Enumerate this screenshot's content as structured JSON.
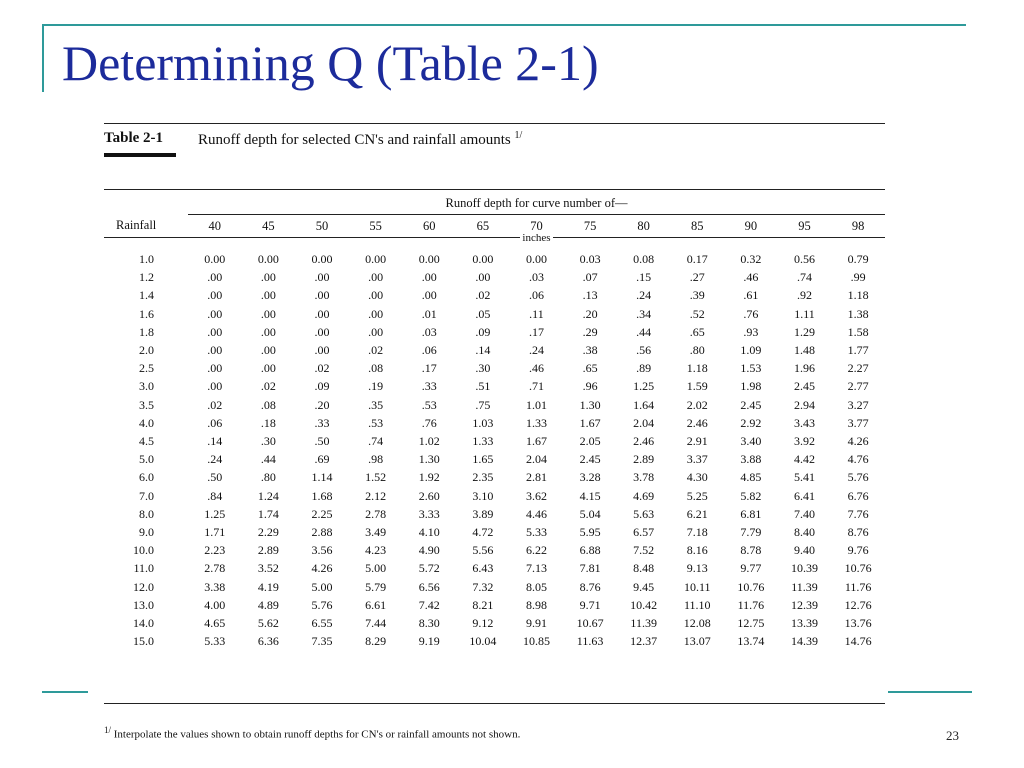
{
  "slide": {
    "title": "Determining Q (Table 2-1)",
    "page_number": "23",
    "accent_color": "#2e9a9a",
    "title_color": "#1c2b9b"
  },
  "table": {
    "label": "Table 2-1",
    "caption": "Runoff depth for selected CN's and rainfall amounts",
    "caption_note_mark": "1/",
    "group_header": "Runoff depth for curve number of—",
    "rain_header": "Rainfall",
    "units": "inches",
    "cn_columns": [
      "40",
      "45",
      "50",
      "55",
      "60",
      "65",
      "70",
      "75",
      "80",
      "85",
      "90",
      "95",
      "98"
    ],
    "rows": [
      {
        "rainfall": "1.0",
        "values": [
          "0.00",
          "0.00",
          "0.00",
          "0.00",
          "0.00",
          "0.00",
          "0.00",
          "0.03",
          "0.08",
          "0.17",
          "0.32",
          "0.56",
          "0.79"
        ]
      },
      {
        "rainfall": "1.2",
        "values": [
          ".00",
          ".00",
          ".00",
          ".00",
          ".00",
          ".00",
          ".03",
          ".07",
          ".15",
          ".27",
          ".46",
          ".74",
          ".99"
        ]
      },
      {
        "rainfall": "1.4",
        "values": [
          ".00",
          ".00",
          ".00",
          ".00",
          ".00",
          ".02",
          ".06",
          ".13",
          ".24",
          ".39",
          ".61",
          ".92",
          "1.18"
        ]
      },
      {
        "rainfall": "1.6",
        "values": [
          ".00",
          ".00",
          ".00",
          ".00",
          ".01",
          ".05",
          ".11",
          ".20",
          ".34",
          ".52",
          ".76",
          "1.11",
          "1.38"
        ]
      },
      {
        "rainfall": "1.8",
        "values": [
          ".00",
          ".00",
          ".00",
          ".00",
          ".03",
          ".09",
          ".17",
          ".29",
          ".44",
          ".65",
          ".93",
          "1.29",
          "1.58"
        ]
      },
      {
        "rainfall": "2.0",
        "values": [
          ".00",
          ".00",
          ".00",
          ".02",
          ".06",
          ".14",
          ".24",
          ".38",
          ".56",
          ".80",
          "1.09",
          "1.48",
          "1.77"
        ]
      },
      {
        "rainfall": "2.5",
        "values": [
          ".00",
          ".00",
          ".02",
          ".08",
          ".17",
          ".30",
          ".46",
          ".65",
          ".89",
          "1.18",
          "1.53",
          "1.96",
          "2.27"
        ]
      },
      {
        "rainfall": "3.0",
        "values": [
          ".00",
          ".02",
          ".09",
          ".19",
          ".33",
          ".51",
          ".71",
          ".96",
          "1.25",
          "1.59",
          "1.98",
          "2.45",
          "2.77"
        ]
      },
      {
        "rainfall": "3.5",
        "values": [
          ".02",
          ".08",
          ".20",
          ".35",
          ".53",
          ".75",
          "1.01",
          "1.30",
          "1.64",
          "2.02",
          "2.45",
          "2.94",
          "3.27"
        ]
      },
      {
        "rainfall": "4.0",
        "values": [
          ".06",
          ".18",
          ".33",
          ".53",
          ".76",
          "1.03",
          "1.33",
          "1.67",
          "2.04",
          "2.46",
          "2.92",
          "3.43",
          "3.77"
        ]
      },
      {
        "rainfall": "4.5",
        "values": [
          ".14",
          ".30",
          ".50",
          ".74",
          "1.02",
          "1.33",
          "1.67",
          "2.05",
          "2.46",
          "2.91",
          "3.40",
          "3.92",
          "4.26"
        ]
      },
      {
        "rainfall": "5.0",
        "values": [
          ".24",
          ".44",
          ".69",
          ".98",
          "1.30",
          "1.65",
          "2.04",
          "2.45",
          "2.89",
          "3.37",
          "3.88",
          "4.42",
          "4.76"
        ]
      },
      {
        "rainfall": "6.0",
        "values": [
          ".50",
          ".80",
          "1.14",
          "1.52",
          "1.92",
          "2.35",
          "2.81",
          "3.28",
          "3.78",
          "4.30",
          "4.85",
          "5.41",
          "5.76"
        ]
      },
      {
        "rainfall": "7.0",
        "values": [
          ".84",
          "1.24",
          "1.68",
          "2.12",
          "2.60",
          "3.10",
          "3.62",
          "4.15",
          "4.69",
          "5.25",
          "5.82",
          "6.41",
          "6.76"
        ]
      },
      {
        "rainfall": "8.0",
        "values": [
          "1.25",
          "1.74",
          "2.25",
          "2.78",
          "3.33",
          "3.89",
          "4.46",
          "5.04",
          "5.63",
          "6.21",
          "6.81",
          "7.40",
          "7.76"
        ]
      },
      {
        "rainfall": "9.0",
        "values": [
          "1.71",
          "2.29",
          "2.88",
          "3.49",
          "4.10",
          "4.72",
          "5.33",
          "5.95",
          "6.57",
          "7.18",
          "7.79",
          "8.40",
          "8.76"
        ]
      },
      {
        "rainfall": "10.0",
        "values": [
          "2.23",
          "2.89",
          "3.56",
          "4.23",
          "4.90",
          "5.56",
          "6.22",
          "6.88",
          "7.52",
          "8.16",
          "8.78",
          "9.40",
          "9.76"
        ]
      },
      {
        "rainfall": "11.0",
        "values": [
          "2.78",
          "3.52",
          "4.26",
          "5.00",
          "5.72",
          "6.43",
          "7.13",
          "7.81",
          "8.48",
          "9.13",
          "9.77",
          "10.39",
          "10.76"
        ]
      },
      {
        "rainfall": "12.0",
        "values": [
          "3.38",
          "4.19",
          "5.00",
          "5.79",
          "6.56",
          "7.32",
          "8.05",
          "8.76",
          "9.45",
          "10.11",
          "10.76",
          "11.39",
          "11.76"
        ]
      },
      {
        "rainfall": "13.0",
        "values": [
          "4.00",
          "4.89",
          "5.76",
          "6.61",
          "7.42",
          "8.21",
          "8.98",
          "9.71",
          "10.42",
          "11.10",
          "11.76",
          "12.39",
          "12.76"
        ]
      },
      {
        "rainfall": "14.0",
        "values": [
          "4.65",
          "5.62",
          "6.55",
          "7.44",
          "8.30",
          "9.12",
          "9.91",
          "10.67",
          "11.39",
          "12.08",
          "12.75",
          "13.39",
          "13.76"
        ]
      },
      {
        "rainfall": "15.0",
        "values": [
          "5.33",
          "6.36",
          "7.35",
          "8.29",
          "9.19",
          "10.04",
          "10.85",
          "11.63",
          "12.37",
          "13.07",
          "13.74",
          "14.39",
          "14.76"
        ]
      }
    ]
  },
  "footnote": {
    "mark": "1/",
    "text": "Interpolate the values shown to obtain runoff depths for CN's or rainfall amounts not shown."
  }
}
